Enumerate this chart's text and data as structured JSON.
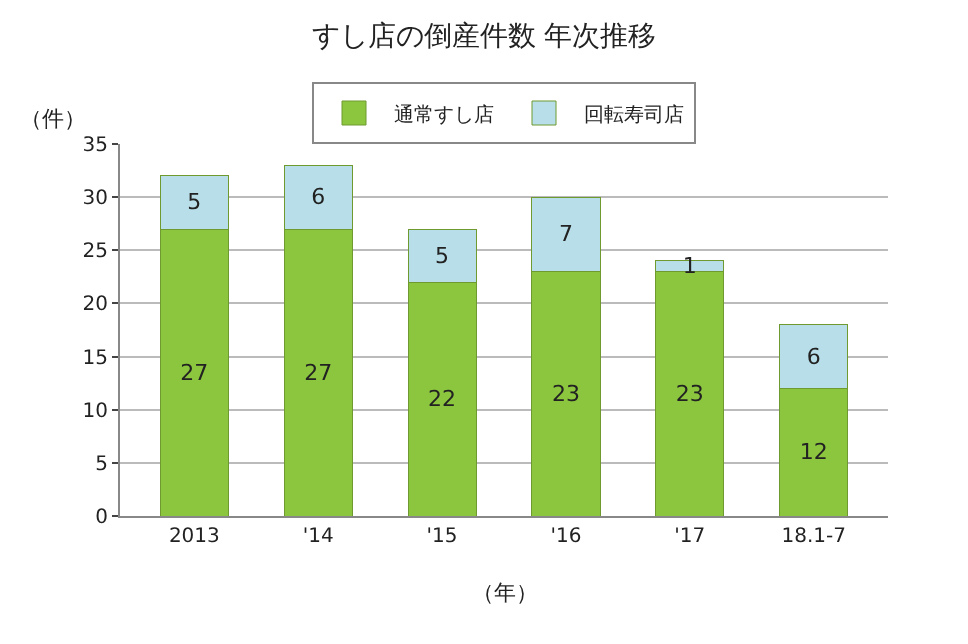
{
  "chart_data": {
    "type": "bar",
    "title": "すし店の倒産件数 年次推移",
    "ylabel": "（件）",
    "xlabel": "（年）",
    "categories": [
      "2013",
      "'14",
      "'15",
      "'16",
      "'17",
      "18.1-7"
    ],
    "series": [
      {
        "name": "通常すし店",
        "color": "#8cc63f",
        "values": [
          27,
          27,
          22,
          23,
          23,
          12
        ]
      },
      {
        "name": "回転寿司店",
        "color": "#b8dfe9",
        "values": [
          5,
          6,
          5,
          7,
          1,
          6
        ]
      }
    ],
    "stacked": true,
    "ylim": [
      0,
      35
    ],
    "yticks": [
      0,
      5,
      10,
      15,
      20,
      25,
      30,
      35
    ],
    "grid": "y",
    "legend": "top",
    "data_labels": true
  }
}
